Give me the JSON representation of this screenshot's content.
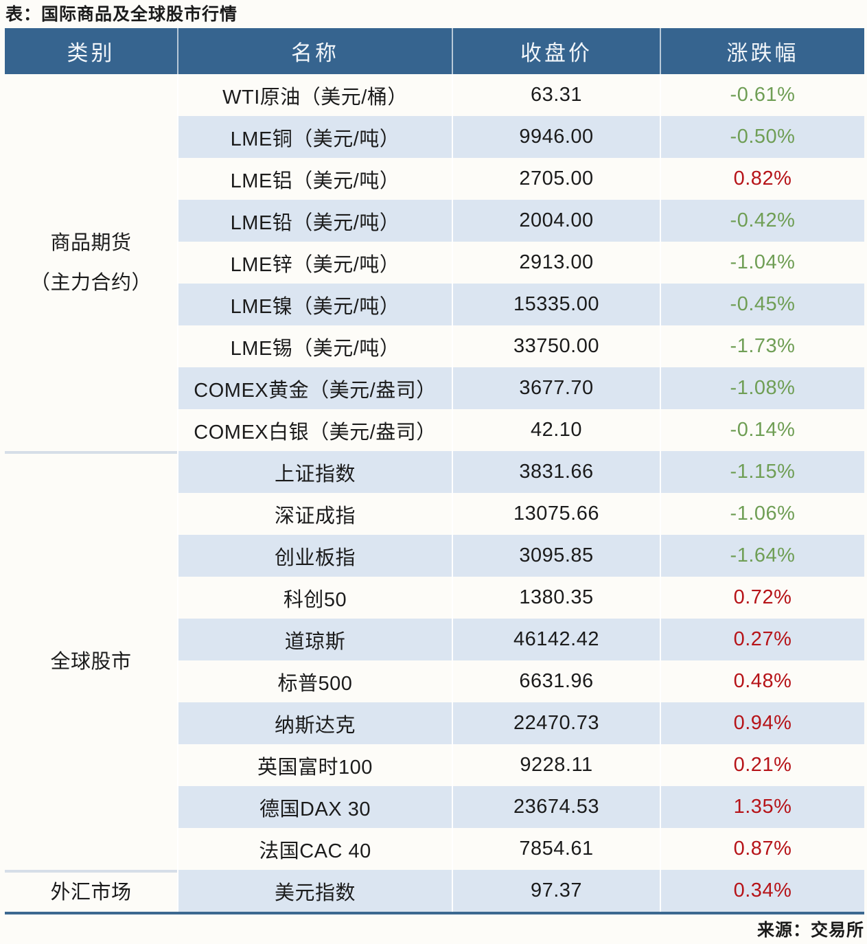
{
  "page": {
    "title": "表：国际商品及全球股市行情",
    "source": "来源：交易所"
  },
  "colors": {
    "header_bg": "#36648f",
    "row_stripe": "#dbe5f1",
    "positive_change": "#b61318",
    "negative_change": "#6f9e55",
    "bottom_border": "#3c6890",
    "section_divider": "#d6dee8"
  },
  "chart_data": {
    "type": "table",
    "title": "表：国际商品及全球股市行情",
    "columns": [
      "类别",
      "名称",
      "收盘价",
      "涨跌幅"
    ],
    "sections": [
      {
        "category": "商品期货\n（主力合约）",
        "rows": [
          {
            "name": "WTI原油（美元/桶）",
            "close": "63.31",
            "change": "-0.61%",
            "dir": "down"
          },
          {
            "name": "LME铜（美元/吨）",
            "close": "9946.00",
            "change": "-0.50%",
            "dir": "down"
          },
          {
            "name": "LME铝（美元/吨）",
            "close": "2705.00",
            "change": "0.82%",
            "dir": "up"
          },
          {
            "name": "LME铅（美元/吨）",
            "close": "2004.00",
            "change": "-0.42%",
            "dir": "down"
          },
          {
            "name": "LME锌（美元/吨）",
            "close": "2913.00",
            "change": "-1.04%",
            "dir": "down"
          },
          {
            "name": "LME镍（美元/吨）",
            "close": "15335.00",
            "change": "-0.45%",
            "dir": "down"
          },
          {
            "name": "LME锡（美元/吨）",
            "close": "33750.00",
            "change": "-1.73%",
            "dir": "down"
          },
          {
            "name": "COMEX黄金（美元/盎司）",
            "close": "3677.70",
            "change": "-1.08%",
            "dir": "down"
          },
          {
            "name": "COMEX白银（美元/盎司）",
            "close": "42.10",
            "change": "-0.14%",
            "dir": "down"
          }
        ]
      },
      {
        "category": "全球股市",
        "rows": [
          {
            "name": "上证指数",
            "close": "3831.66",
            "change": "-1.15%",
            "dir": "down"
          },
          {
            "name": "深证成指",
            "close": "13075.66",
            "change": "-1.06%",
            "dir": "down"
          },
          {
            "name": "创业板指",
            "close": "3095.85",
            "change": "-1.64%",
            "dir": "down"
          },
          {
            "name": "科创50",
            "close": "1380.35",
            "change": "0.72%",
            "dir": "up"
          },
          {
            "name": "道琼斯",
            "close": "46142.42",
            "change": "0.27%",
            "dir": "up"
          },
          {
            "name": "标普500",
            "close": "6631.96",
            "change": "0.48%",
            "dir": "up"
          },
          {
            "name": "纳斯达克",
            "close": "22470.73",
            "change": "0.94%",
            "dir": "up"
          },
          {
            "name": "英国富时100",
            "close": "9228.11",
            "change": "0.21%",
            "dir": "up"
          },
          {
            "name": "德国DAX 30",
            "close": "23674.53",
            "change": "1.35%",
            "dir": "up"
          },
          {
            "name": "法国CAC 40",
            "close": "7854.61",
            "change": "0.87%",
            "dir": "up"
          }
        ]
      },
      {
        "category": "外汇市场",
        "rows": [
          {
            "name": "美元指数",
            "close": "97.37",
            "change": "0.34%",
            "dir": "up"
          }
        ]
      }
    ],
    "source": "来源：交易所"
  }
}
